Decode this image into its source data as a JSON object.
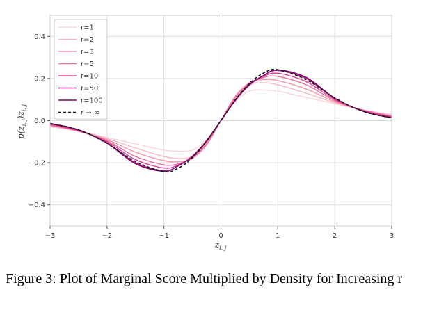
{
  "caption": "Figure 3: Plot of Marginal Score Multiplied by Density for Increasing r",
  "chart_data": {
    "type": "line",
    "xlabel": "z_{i,j}",
    "ylabel": "p(z_{i,j})z_{i,j}",
    "xlim": [
      -3,
      3
    ],
    "ylim": [
      -0.5,
      0.5
    ],
    "xticks": [
      -3,
      -2,
      -1,
      0,
      1,
      2,
      3
    ],
    "xtick_labels": [
      "−3",
      "−2",
      "−1",
      "0",
      "1",
      "2",
      "3"
    ],
    "yticks": [
      -0.4,
      -0.2,
      0.0,
      0.2,
      0.4
    ],
    "ytick_labels": [
      "−0.4",
      "−0.2",
      "0.0",
      "0.2",
      "0.4"
    ],
    "grid": true,
    "legend_position": "top-left",
    "vertical_line_at_x": 0,
    "x": [
      -3.0,
      -2.5,
      -2.0,
      -1.5,
      -1.0,
      -0.75,
      -0.5,
      -0.25,
      0.0,
      0.25,
      0.5,
      0.75,
      1.0,
      1.5,
      2.0,
      2.5,
      3.0
    ],
    "series": [
      {
        "name": "r=1",
        "color": "#fbd5da",
        "dash": false,
        "values": [
          -0.03,
          -0.05,
          -0.08,
          -0.11,
          -0.14,
          -0.145,
          -0.14,
          -0.09,
          0.0,
          0.09,
          0.14,
          0.145,
          0.14,
          0.11,
          0.08,
          0.05,
          0.03
        ]
      },
      {
        "name": "r=2",
        "color": "#f8b7c2",
        "dash": false,
        "values": [
          -0.025,
          -0.05,
          -0.085,
          -0.13,
          -0.17,
          -0.18,
          -0.17,
          -0.11,
          0.0,
          0.11,
          0.17,
          0.18,
          0.17,
          0.13,
          0.085,
          0.05,
          0.025
        ]
      },
      {
        "name": "r=3",
        "color": "#f596ab",
        "dash": false,
        "values": [
          -0.022,
          -0.05,
          -0.09,
          -0.15,
          -0.19,
          -0.195,
          -0.18,
          -0.115,
          0.0,
          0.115,
          0.18,
          0.195,
          0.19,
          0.15,
          0.09,
          0.05,
          0.022
        ]
      },
      {
        "name": "r=5",
        "color": "#ec6f9c",
        "dash": false,
        "values": [
          -0.02,
          -0.05,
          -0.095,
          -0.17,
          -0.21,
          -0.205,
          -0.175,
          -0.11,
          0.0,
          0.11,
          0.175,
          0.205,
          0.21,
          0.17,
          0.095,
          0.05,
          0.02
        ]
      },
      {
        "name": "r=10",
        "color": "#dc3f95",
        "dash": false,
        "values": [
          -0.018,
          -0.048,
          -0.1,
          -0.185,
          -0.225,
          -0.21,
          -0.17,
          -0.1,
          0.0,
          0.1,
          0.17,
          0.21,
          0.225,
          0.185,
          0.1,
          0.048,
          0.018
        ]
      },
      {
        "name": "r=50",
        "color": "#b4137f",
        "dash": false,
        "values": [
          -0.015,
          -0.045,
          -0.105,
          -0.2,
          -0.238,
          -0.215,
          -0.168,
          -0.095,
          0.0,
          0.095,
          0.168,
          0.215,
          0.238,
          0.2,
          0.105,
          0.045,
          0.015
        ]
      },
      {
        "name": "r=100",
        "color": "#7a0c6d",
        "dash": false,
        "values": [
          -0.013,
          -0.044,
          -0.107,
          -0.205,
          -0.241,
          -0.214,
          -0.172,
          -0.095,
          0.0,
          0.095,
          0.172,
          0.214,
          0.241,
          0.205,
          0.107,
          0.044,
          0.013
        ]
      },
      {
        "name": "r → ∞",
        "color": "#111111",
        "dash": true,
        "values": [
          -0.013,
          -0.044,
          -0.108,
          -0.194,
          -0.242,
          -0.226,
          -0.176,
          -0.097,
          0.0,
          0.097,
          0.176,
          0.226,
          0.242,
          0.194,
          0.108,
          0.044,
          0.013
        ]
      }
    ]
  }
}
